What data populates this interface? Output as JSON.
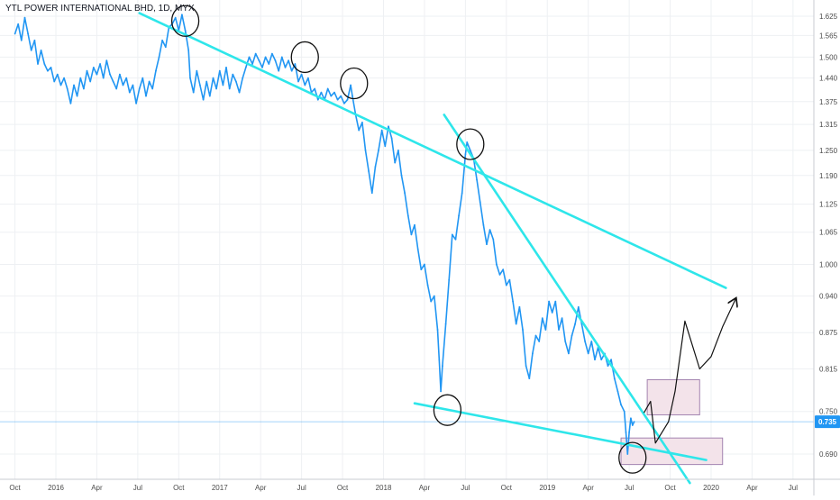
{
  "header": {
    "title": "YTL POWER INTERNATIONAL BHD, 1D, MYX"
  },
  "chart_data": {
    "type": "line",
    "title": "YTL POWER INTERNATIONAL BHD, 1D, MYX",
    "xlabel": "",
    "ylabel": "",
    "grid": true,
    "xlim": [
      2015.75,
      2020.9
    ],
    "ylim": [
      0.645,
      1.645
    ],
    "y_scale": "log",
    "x_tick_labels": [
      {
        "t": 2015.75,
        "label": "Oct"
      },
      {
        "t": 2016.0,
        "label": "2016"
      },
      {
        "t": 2016.25,
        "label": "Apr"
      },
      {
        "t": 2016.5,
        "label": "Jul"
      },
      {
        "t": 2016.75,
        "label": "Oct"
      },
      {
        "t": 2017.0,
        "label": "2017"
      },
      {
        "t": 2017.25,
        "label": "Apr"
      },
      {
        "t": 2017.5,
        "label": "Jul"
      },
      {
        "t": 2017.75,
        "label": "Oct"
      },
      {
        "t": 2018.0,
        "label": "2018"
      },
      {
        "t": 2018.25,
        "label": "Apr"
      },
      {
        "t": 2018.5,
        "label": "Jul"
      },
      {
        "t": 2018.75,
        "label": "Oct"
      },
      {
        "t": 2019.0,
        "label": "2019"
      },
      {
        "t": 2019.25,
        "label": "Apr"
      },
      {
        "t": 2019.5,
        "label": "Jul"
      },
      {
        "t": 2019.75,
        "label": "Oct"
      },
      {
        "t": 2020.0,
        "label": "2020"
      },
      {
        "t": 2020.25,
        "label": "Apr"
      },
      {
        "t": 2020.5,
        "label": "Jul"
      }
    ],
    "y_tick_labels": [
      "1.625",
      "1.565",
      "1.500",
      "1.440",
      "1.375",
      "1.315",
      "1.250",
      "1.190",
      "1.125",
      "1.065",
      "1.000",
      "0.940",
      "0.875",
      "0.815",
      "0.750",
      "0.690"
    ],
    "last_price": {
      "value": 0.735,
      "label": "0.735",
      "color": "#2196f3"
    },
    "series": [
      {
        "color": "#2196f3",
        "points": [
          [
            2015.75,
            1.57
          ],
          [
            2015.77,
            1.6
          ],
          [
            2015.79,
            1.55
          ],
          [
            2015.81,
            1.62
          ],
          [
            2015.83,
            1.57
          ],
          [
            2015.85,
            1.52
          ],
          [
            2015.87,
            1.55
          ],
          [
            2015.89,
            1.48
          ],
          [
            2015.91,
            1.52
          ],
          [
            2015.93,
            1.48
          ],
          [
            2015.95,
            1.46
          ],
          [
            2015.97,
            1.47
          ],
          [
            2015.99,
            1.43
          ],
          [
            2016.01,
            1.45
          ],
          [
            2016.03,
            1.42
          ],
          [
            2016.05,
            1.44
          ],
          [
            2016.07,
            1.41
          ],
          [
            2016.09,
            1.37
          ],
          [
            2016.11,
            1.42
          ],
          [
            2016.13,
            1.39
          ],
          [
            2016.15,
            1.44
          ],
          [
            2016.17,
            1.41
          ],
          [
            2016.19,
            1.46
          ],
          [
            2016.21,
            1.43
          ],
          [
            2016.23,
            1.47
          ],
          [
            2016.25,
            1.45
          ],
          [
            2016.27,
            1.48
          ],
          [
            2016.29,
            1.44
          ],
          [
            2016.31,
            1.49
          ],
          [
            2016.33,
            1.45
          ],
          [
            2016.35,
            1.43
          ],
          [
            2016.37,
            1.41
          ],
          [
            2016.39,
            1.45
          ],
          [
            2016.41,
            1.42
          ],
          [
            2016.43,
            1.44
          ],
          [
            2016.45,
            1.4
          ],
          [
            2016.47,
            1.42
          ],
          [
            2016.49,
            1.37
          ],
          [
            2016.51,
            1.41
          ],
          [
            2016.53,
            1.44
          ],
          [
            2016.55,
            1.39
          ],
          [
            2016.57,
            1.43
          ],
          [
            2016.59,
            1.41
          ],
          [
            2016.61,
            1.46
          ],
          [
            2016.63,
            1.5
          ],
          [
            2016.65,
            1.55
          ],
          [
            2016.67,
            1.53
          ],
          [
            2016.69,
            1.59
          ],
          [
            2016.71,
            1.6
          ],
          [
            2016.73,
            1.62
          ],
          [
            2016.75,
            1.58
          ],
          [
            2016.77,
            1.63
          ],
          [
            2016.79,
            1.58
          ],
          [
            2016.81,
            1.52
          ],
          [
            2016.82,
            1.44
          ],
          [
            2016.84,
            1.4
          ],
          [
            2016.86,
            1.46
          ],
          [
            2016.88,
            1.42
          ],
          [
            2016.9,
            1.38
          ],
          [
            2016.92,
            1.43
          ],
          [
            2016.94,
            1.39
          ],
          [
            2016.96,
            1.44
          ],
          [
            2016.98,
            1.41
          ],
          [
            2017.0,
            1.46
          ],
          [
            2017.02,
            1.42
          ],
          [
            2017.04,
            1.47
          ],
          [
            2017.06,
            1.41
          ],
          [
            2017.08,
            1.45
          ],
          [
            2017.1,
            1.43
          ],
          [
            2017.12,
            1.4
          ],
          [
            2017.14,
            1.44
          ],
          [
            2017.16,
            1.47
          ],
          [
            2017.18,
            1.5
          ],
          [
            2017.2,
            1.48
          ],
          [
            2017.22,
            1.51
          ],
          [
            2017.24,
            1.49
          ],
          [
            2017.26,
            1.47
          ],
          [
            2017.28,
            1.5
          ],
          [
            2017.3,
            1.48
          ],
          [
            2017.32,
            1.51
          ],
          [
            2017.34,
            1.49
          ],
          [
            2017.36,
            1.46
          ],
          [
            2017.38,
            1.5
          ],
          [
            2017.4,
            1.47
          ],
          [
            2017.42,
            1.49
          ],
          [
            2017.44,
            1.46
          ],
          [
            2017.46,
            1.48
          ],
          [
            2017.48,
            1.43
          ],
          [
            2017.5,
            1.45
          ],
          [
            2017.52,
            1.42
          ],
          [
            2017.54,
            1.44
          ],
          [
            2017.56,
            1.4
          ],
          [
            2017.58,
            1.41
          ],
          [
            2017.6,
            1.38
          ],
          [
            2017.62,
            1.4
          ],
          [
            2017.64,
            1.38
          ],
          [
            2017.66,
            1.41
          ],
          [
            2017.68,
            1.39
          ],
          [
            2017.7,
            1.4
          ],
          [
            2017.72,
            1.38
          ],
          [
            2017.74,
            1.39
          ],
          [
            2017.76,
            1.37
          ],
          [
            2017.78,
            1.38
          ],
          [
            2017.8,
            1.42
          ],
          [
            2017.81,
            1.39
          ],
          [
            2017.83,
            1.34
          ],
          [
            2017.85,
            1.3
          ],
          [
            2017.87,
            1.32
          ],
          [
            2017.89,
            1.25
          ],
          [
            2017.91,
            1.2
          ],
          [
            2017.93,
            1.15
          ],
          [
            2017.95,
            1.21
          ],
          [
            2017.97,
            1.25
          ],
          [
            2017.99,
            1.3
          ],
          [
            2018.01,
            1.26
          ],
          [
            2018.03,
            1.31
          ],
          [
            2018.05,
            1.28
          ],
          [
            2018.07,
            1.22
          ],
          [
            2018.09,
            1.25
          ],
          [
            2018.11,
            1.19
          ],
          [
            2018.13,
            1.15
          ],
          [
            2018.15,
            1.1
          ],
          [
            2018.17,
            1.06
          ],
          [
            2018.19,
            1.08
          ],
          [
            2018.21,
            1.03
          ],
          [
            2018.23,
            0.99
          ],
          [
            2018.25,
            1.0
          ],
          [
            2018.27,
            0.96
          ],
          [
            2018.29,
            0.93
          ],
          [
            2018.31,
            0.94
          ],
          [
            2018.33,
            0.88
          ],
          [
            2018.34,
            0.83
          ],
          [
            2018.35,
            0.78
          ],
          [
            2018.36,
            0.82
          ],
          [
            2018.38,
            0.89
          ],
          [
            2018.4,
            0.97
          ],
          [
            2018.42,
            1.06
          ],
          [
            2018.44,
            1.05
          ],
          [
            2018.46,
            1.1
          ],
          [
            2018.48,
            1.15
          ],
          [
            2018.5,
            1.24
          ],
          [
            2018.51,
            1.27
          ],
          [
            2018.53,
            1.25
          ],
          [
            2018.55,
            1.23
          ],
          [
            2018.57,
            1.18
          ],
          [
            2018.59,
            1.13
          ],
          [
            2018.61,
            1.08
          ],
          [
            2018.63,
            1.04
          ],
          [
            2018.65,
            1.07
          ],
          [
            2018.67,
            1.05
          ],
          [
            2018.69,
            1.0
          ],
          [
            2018.71,
            0.98
          ],
          [
            2018.73,
            0.99
          ],
          [
            2018.75,
            0.96
          ],
          [
            2018.77,
            0.97
          ],
          [
            2018.79,
            0.93
          ],
          [
            2018.81,
            0.89
          ],
          [
            2018.83,
            0.92
          ],
          [
            2018.85,
            0.88
          ],
          [
            2018.87,
            0.82
          ],
          [
            2018.89,
            0.8
          ],
          [
            2018.91,
            0.84
          ],
          [
            2018.93,
            0.87
          ],
          [
            2018.95,
            0.86
          ],
          [
            2018.97,
            0.9
          ],
          [
            2018.99,
            0.88
          ],
          [
            2019.01,
            0.93
          ],
          [
            2019.03,
            0.91
          ],
          [
            2019.05,
            0.93
          ],
          [
            2019.07,
            0.88
          ],
          [
            2019.09,
            0.9
          ],
          [
            2019.11,
            0.86
          ],
          [
            2019.13,
            0.84
          ],
          [
            2019.15,
            0.87
          ],
          [
            2019.17,
            0.89
          ],
          [
            2019.19,
            0.92
          ],
          [
            2019.21,
            0.89
          ],
          [
            2019.23,
            0.86
          ],
          [
            2019.25,
            0.84
          ],
          [
            2019.27,
            0.86
          ],
          [
            2019.29,
            0.83
          ],
          [
            2019.31,
            0.85
          ],
          [
            2019.33,
            0.83
          ],
          [
            2019.35,
            0.84
          ],
          [
            2019.37,
            0.82
          ],
          [
            2019.39,
            0.83
          ],
          [
            2019.41,
            0.8
          ],
          [
            2019.43,
            0.78
          ],
          [
            2019.45,
            0.76
          ],
          [
            2019.47,
            0.75
          ],
          [
            2019.48,
            0.72
          ],
          [
            2019.49,
            0.69
          ],
          [
            2019.5,
            0.72
          ],
          [
            2019.51,
            0.74
          ],
          [
            2019.52,
            0.73
          ],
          [
            2019.53,
            0.735
          ]
        ]
      }
    ],
    "annotations": [
      {
        "type": "trendline",
        "color": "#2ee6ea",
        "from": [
          2016.51,
          1.635
        ],
        "to": [
          2020.09,
          0.955
        ]
      },
      {
        "type": "trendline",
        "color": "#2ee6ea",
        "from": [
          2018.37,
          1.34
        ],
        "to": [
          2019.87,
          0.652
        ]
      },
      {
        "type": "trendline",
        "color": "#2ee6ea",
        "from": [
          2018.19,
          0.762
        ],
        "to": [
          2019.97,
          0.682
        ]
      },
      {
        "type": "rect",
        "fill": "#f3e3ea",
        "stroke": "#a384b0",
        "from": [
          2019.61,
          0.798
        ],
        "to": [
          2019.93,
          0.745
        ]
      },
      {
        "type": "rect",
        "fill": "#f3e3ea",
        "stroke": "#a384b0",
        "from": [
          2019.45,
          0.712
        ],
        "to": [
          2020.07,
          0.676
        ]
      },
      {
        "type": "circle",
        "center": [
          2016.79,
          1.61
        ]
      },
      {
        "type": "circle",
        "center": [
          2017.52,
          1.5
        ]
      },
      {
        "type": "circle",
        "center": [
          2017.82,
          1.425
        ]
      },
      {
        "type": "circle",
        "center": [
          2018.53,
          1.265
        ]
      },
      {
        "type": "circle",
        "center": [
          2018.39,
          0.752
        ]
      },
      {
        "type": "circle",
        "center": [
          2019.52,
          0.685
        ]
      },
      {
        "type": "projection",
        "points": [
          [
            2019.59,
            0.748
          ],
          [
            2019.63,
            0.765
          ],
          [
            2019.66,
            0.705
          ],
          [
            2019.74,
            0.735
          ],
          [
            2019.78,
            0.78
          ],
          [
            2019.84,
            0.895
          ],
          [
            2019.93,
            0.815
          ],
          [
            2020.0,
            0.835
          ],
          [
            2020.07,
            0.885
          ],
          [
            2020.15,
            0.935
          ]
        ]
      }
    ]
  }
}
